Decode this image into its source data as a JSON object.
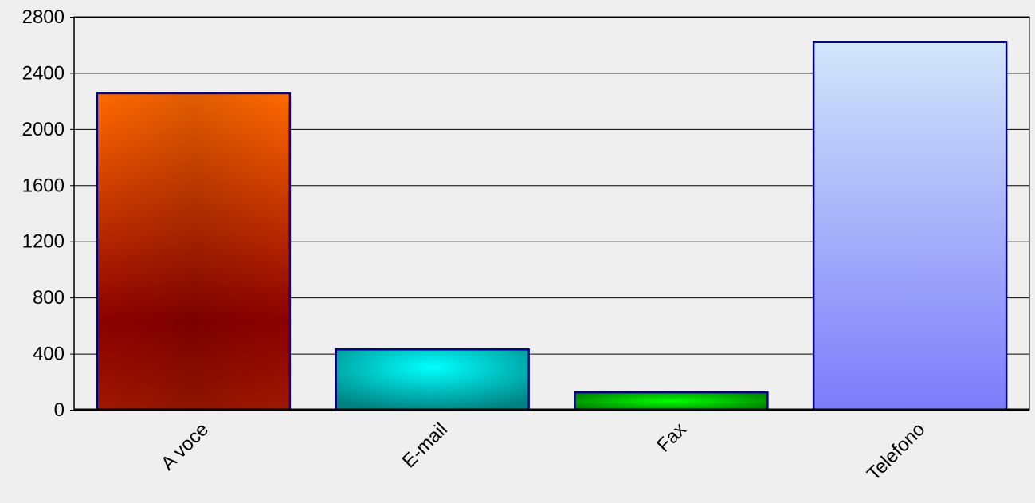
{
  "chart_data": {
    "type": "bar",
    "categories": [
      "A voce",
      "E-mail",
      "Fax",
      "Telefono"
    ],
    "values": [
      2255,
      430,
      125,
      2620
    ],
    "ylim": [
      0,
      2800
    ],
    "yticks": [
      0,
      400,
      800,
      1200,
      1600,
      2000,
      2400,
      2800
    ],
    "grid": true,
    "legend": "none",
    "bar_styles": [
      "red-orange",
      "cyan",
      "green",
      "lavender"
    ],
    "colors": {
      "background": "#efefef",
      "grid": "#000000",
      "bar_border": "#000080"
    }
  }
}
